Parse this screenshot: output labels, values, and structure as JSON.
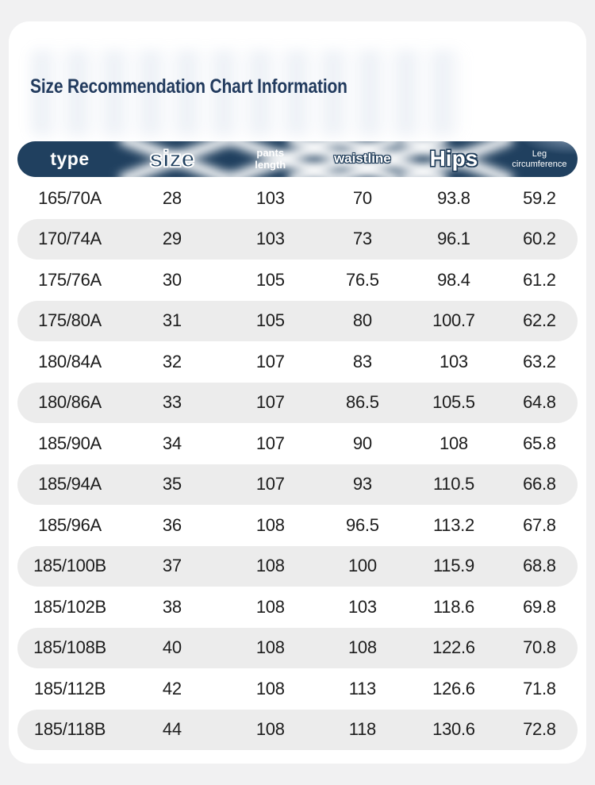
{
  "page": {
    "title": "Size Recommendation Chart Information"
  },
  "header": {
    "type": "type",
    "size": "size",
    "pants_length_line1": "pants",
    "pants_length_line2": "length",
    "waistline": "waistline",
    "hips": "Hips",
    "leg_line1": "Leg",
    "leg_line2": "circumference"
  },
  "colors": {
    "page_bg": "#f1f1f2",
    "card_bg": "#ffffff",
    "title_text": "#223b5e",
    "header_bg": "#20405f",
    "header_text": "#ffffff",
    "row_alt_bg": "#ececec",
    "body_text": "#1c1c1c"
  },
  "chart_data": {
    "type": "table",
    "title": "Size Recommendation Chart Information",
    "columns": [
      "type",
      "size",
      "pants length",
      "waistline",
      "Hips",
      "Leg circumference"
    ],
    "rows": [
      [
        "165/70A",
        "28",
        "103",
        "70",
        "93.8",
        "59.2"
      ],
      [
        "170/74A",
        "29",
        "103",
        "73",
        "96.1",
        "60.2"
      ],
      [
        "175/76A",
        "30",
        "105",
        "76.5",
        "98.4",
        "61.2"
      ],
      [
        "175/80A",
        "31",
        "105",
        "80",
        "100.7",
        "62.2"
      ],
      [
        "180/84A",
        "32",
        "107",
        "83",
        "103",
        "63.2"
      ],
      [
        "180/86A",
        "33",
        "107",
        "86.5",
        "105.5",
        "64.8"
      ],
      [
        "185/90A",
        "34",
        "107",
        "90",
        "108",
        "65.8"
      ],
      [
        "185/94A",
        "35",
        "107",
        "93",
        "110.5",
        "66.8"
      ],
      [
        "185/96A",
        "36",
        "108",
        "96.5",
        "113.2",
        "67.8"
      ],
      [
        "185/100B",
        "37",
        "108",
        "100",
        "115.9",
        "68.8"
      ],
      [
        "185/102B",
        "38",
        "108",
        "103",
        "118.6",
        "69.8"
      ],
      [
        "185/108B",
        "40",
        "108",
        "108",
        "122.6",
        "70.8"
      ],
      [
        "185/112B",
        "42",
        "108",
        "113",
        "126.6",
        "71.8"
      ],
      [
        "185/118B",
        "44",
        "108",
        "118",
        "130.6",
        "72.8"
      ]
    ]
  }
}
